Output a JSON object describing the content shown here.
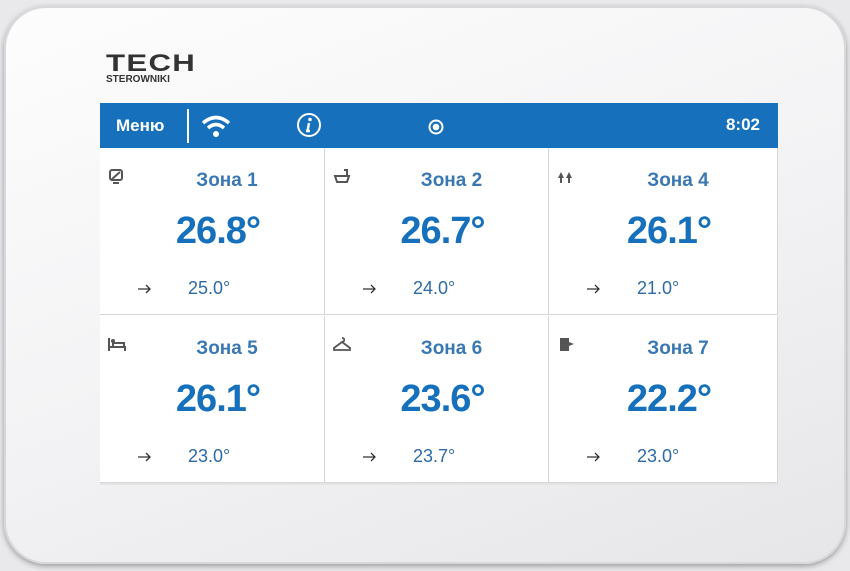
{
  "header": {
    "brand": "TECH",
    "subbrand": "STEROWNIKI"
  },
  "status_bar": {
    "menu": "Меню",
    "time": "8:02"
  },
  "zones": [
    {
      "name": "Зона 1",
      "temperature": "26.8°",
      "setpoint": "25.0°"
    },
    {
      "name": "Зона 2",
      "temperature": "26.7°",
      "setpoint": "24.0°"
    },
    {
      "name": "Зона 4",
      "temperature": "26.1°",
      "setpoint": "21.0°"
    },
    {
      "name": "Зона 5",
      "temperature": "26.1°",
      "setpoint": "23.0°"
    },
    {
      "name": "Зона 6",
      "temperature": "23.6°",
      "setpoint": "23.7°"
    },
    {
      "name": "Зона 7",
      "temperature": "22.2°",
      "setpoint": "23.0°"
    }
  ]
}
